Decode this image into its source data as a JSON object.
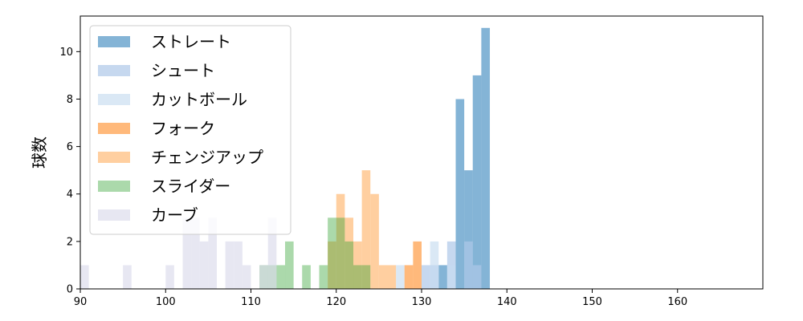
{
  "chart_data": {
    "type": "bar",
    "ylabel": "球数",
    "xlim": [
      90,
      170
    ],
    "ylim": [
      0,
      11.5
    ],
    "x_ticks": [
      90,
      100,
      110,
      120,
      130,
      140,
      150,
      160
    ],
    "y_ticks": [
      0,
      2,
      4,
      6,
      8,
      10
    ],
    "bin_width": 1,
    "legend_position": "upper-left",
    "series": [
      {
        "name": "ストレート",
        "color": "#1f77b4",
        "opacity": 0.55,
        "bins": [
          {
            "x": 132,
            "y": 1
          },
          {
            "x": 134,
            "y": 8
          },
          {
            "x": 135,
            "y": 5
          },
          {
            "x": 136,
            "y": 9
          },
          {
            "x": 137,
            "y": 11
          }
        ]
      },
      {
        "name": "シュート",
        "color": "#aec7e8",
        "opacity": 0.7,
        "bins": [
          {
            "x": 130,
            "y": 1
          },
          {
            "x": 131,
            "y": 1
          },
          {
            "x": 133,
            "y": 2
          },
          {
            "x": 135,
            "y": 2
          },
          {
            "x": 136,
            "y": 1
          }
        ]
      },
      {
        "name": "カットボール",
        "color": "#c6dbef",
        "opacity": 0.65,
        "bins": [
          {
            "x": 127,
            "y": 1
          },
          {
            "x": 131,
            "y": 2
          },
          {
            "x": 133,
            "y": 1
          }
        ]
      },
      {
        "name": "フォーク",
        "color": "#ff7f0e",
        "opacity": 0.55,
        "bins": [
          {
            "x": 128,
            "y": 1
          },
          {
            "x": 129,
            "y": 2
          }
        ]
      },
      {
        "name": "チェンジアップ",
        "color": "#ffbb78",
        "opacity": 0.7,
        "bins": [
          {
            "x": 119,
            "y": 2
          },
          {
            "x": 120,
            "y": 4
          },
          {
            "x": 121,
            "y": 3
          },
          {
            "x": 122,
            "y": 2
          },
          {
            "x": 123,
            "y": 5
          },
          {
            "x": 124,
            "y": 4
          },
          {
            "x": 125,
            "y": 1
          },
          {
            "x": 126,
            "y": 1
          }
        ]
      },
      {
        "name": "スライダー",
        "color": "#2ca02c",
        "opacity": 0.4,
        "bins": [
          {
            "x": 111,
            "y": 1
          },
          {
            "x": 112,
            "y": 1
          },
          {
            "x": 113,
            "y": 1
          },
          {
            "x": 114,
            "y": 2
          },
          {
            "x": 116,
            "y": 1
          },
          {
            "x": 118,
            "y": 1
          },
          {
            "x": 119,
            "y": 3
          },
          {
            "x": 120,
            "y": 3
          },
          {
            "x": 121,
            "y": 2
          },
          {
            "x": 122,
            "y": 1
          },
          {
            "x": 123,
            "y": 1
          }
        ]
      },
      {
        "name": "カーブ",
        "color": "#dadaeb",
        "opacity": 0.65,
        "bins": [
          {
            "x": 90,
            "y": 1
          },
          {
            "x": 95,
            "y": 1
          },
          {
            "x": 100,
            "y": 1
          },
          {
            "x": 102,
            "y": 3
          },
          {
            "x": 103,
            "y": 3
          },
          {
            "x": 104,
            "y": 2
          },
          {
            "x": 105,
            "y": 3
          },
          {
            "x": 107,
            "y": 2
          },
          {
            "x": 108,
            "y": 2
          },
          {
            "x": 109,
            "y": 1
          },
          {
            "x": 111,
            "y": 1
          },
          {
            "x": 112,
            "y": 3
          }
        ]
      }
    ]
  }
}
